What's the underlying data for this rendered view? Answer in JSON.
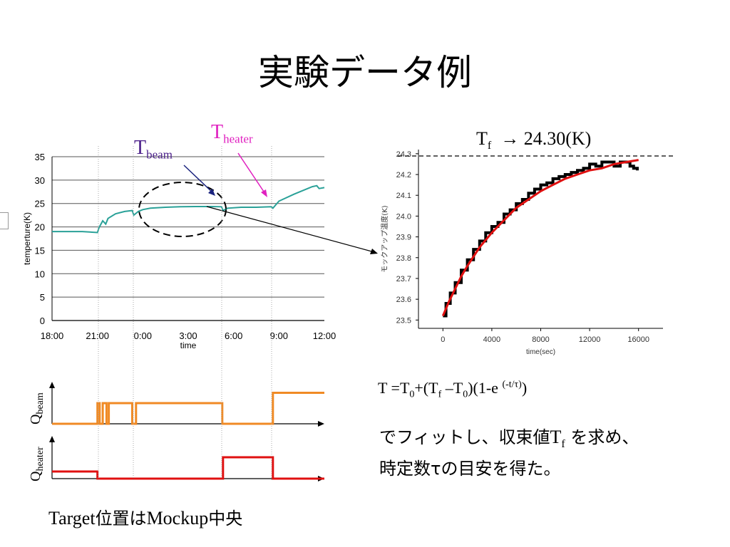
{
  "slide": {
    "title": "実験データ例",
    "caption_en": "Target",
    "caption_jp1": "位置は",
    "caption_en2": "Mockup",
    "caption_jp2": "中央"
  },
  "annotations": {
    "tbeam_T": "T",
    "tbeam_sub": "beam",
    "theater_T": "T",
    "theater_sub": "heater",
    "tf_T": "T",
    "tf_sub": "f",
    "tf_value": "→  24.30(K)",
    "q_beam_Q": "Q",
    "q_beam_sub": "beam",
    "q_heater_Q": "Q",
    "q_heater_sub": "heater"
  },
  "formula": {
    "p1": "T =T",
    "s1": "0",
    "p2": "+(T",
    "s2": "f",
    "p3": " –T",
    "s3": "0",
    "p4": ")(1-e ",
    "sup": "(-t/τ)",
    "p5": ")"
  },
  "notes": {
    "line1_a": "でフィットし、収束値",
    "line1_T": "T",
    "line1_sub": "f",
    "line1_b": " を求め、",
    "line2": "時定数τの目安を得た。"
  },
  "chart_data": [
    {
      "type": "line",
      "ylabel": "temperture(K)",
      "xlabel": "time",
      "x_ticks": [
        "18:00",
        "21:00",
        "0:00",
        "3:00",
        "6:00",
        "9:00",
        "12:00"
      ],
      "y_ticks": [
        "0",
        "5",
        "10",
        "15",
        "20",
        "25",
        "30",
        "35"
      ],
      "ylim": [
        0,
        35
      ],
      "xlim_hours": [
        0,
        18
      ],
      "grid": "horizontal",
      "color": "#2aa198",
      "series": [
        {
          "x_hours": [
            0,
            2.0,
            3.0,
            3.1,
            3.35,
            3.55,
            3.7,
            4.2,
            4.8,
            5.3,
            5.4,
            5.7,
            6.0,
            6.5,
            7.5,
            8.5,
            9.5,
            10.5,
            11.2,
            11.3,
            11.6,
            12.5,
            13.5,
            14.5,
            14.6,
            15.0,
            16.0,
            17.2,
            17.5,
            17.65,
            18.0
          ],
          "y": [
            19.0,
            19.0,
            18.8,
            19.8,
            21.3,
            20.6,
            21.8,
            22.8,
            23.3,
            23.5,
            22.5,
            23.3,
            23.7,
            24.0,
            24.2,
            24.3,
            24.35,
            24.35,
            24.3,
            23.5,
            24.0,
            24.2,
            24.2,
            24.3,
            24.0,
            25.5,
            27.0,
            28.6,
            28.8,
            28.2,
            28.4
          ]
        }
      ]
    },
    {
      "type": "line",
      "xlabel": "time(sec)",
      "ylabel": "モックアップ温度(K)",
      "x_ticks": [
        "0",
        "4000",
        "8000",
        "12000",
        "16000"
      ],
      "y_ticks": [
        "23.5",
        "23.6",
        "23.7",
        "23.8",
        "23.9",
        "24.0",
        "24.1",
        "24.2",
        "24.3"
      ],
      "xlim": [
        -2000,
        18000
      ],
      "ylim": [
        23.46,
        24.32
      ],
      "reference_line": 24.3,
      "series": [
        {
          "name": "",
          "color": "#000000",
          "x": [
            0,
            250,
            600,
            1000,
            1500,
            2000,
            2500,
            3000,
            3500,
            4000,
            4500,
            5000,
            5500,
            6000,
            6500,
            7000,
            7500,
            8000,
            8500,
            9000,
            9500,
            10000,
            10500,
            11000,
            11500,
            12000,
            12500,
            13000,
            13500,
            14000,
            14500,
            15000,
            15300,
            15600,
            15900
          ],
          "y": [
            23.52,
            23.58,
            23.63,
            23.68,
            23.74,
            23.79,
            23.84,
            23.88,
            23.92,
            23.95,
            23.97,
            24.01,
            24.03,
            24.06,
            24.08,
            24.11,
            24.13,
            24.15,
            24.16,
            24.18,
            24.19,
            24.2,
            24.21,
            24.22,
            24.23,
            24.25,
            24.24,
            24.26,
            24.26,
            24.24,
            24.26,
            24.26,
            24.24,
            24.23,
            24.22
          ]
        },
        {
          "name": "",
          "color": "#e01010",
          "x": [
            0,
            500,
            1000,
            1500,
            2000,
            3000,
            4000,
            5000,
            6000,
            7000,
            8000,
            9000,
            10000,
            11000,
            12000,
            13000,
            14000,
            15000,
            16000
          ],
          "y": [
            23.52,
            23.59,
            23.65,
            23.71,
            23.76,
            23.85,
            23.92,
            23.98,
            24.04,
            24.08,
            24.12,
            24.15,
            24.18,
            24.2,
            24.22,
            24.23,
            24.25,
            24.26,
            24.27
          ]
        }
      ]
    },
    {
      "type": "line",
      "ylabel": "Qbeam",
      "xlim_hours": [
        0,
        18
      ],
      "series": [
        {
          "name": "Qbeam",
          "color": "#f08a24",
          "x_hours": [
            0,
            3.0,
            3.0,
            3.15,
            3.15,
            3.35,
            3.35,
            3.6,
            3.6,
            3.75,
            3.75,
            5.3,
            5.3,
            5.55,
            5.55,
            11.25,
            11.25,
            14.6,
            14.6,
            18.0
          ],
          "y": [
            0,
            0,
            1,
            1,
            0,
            0,
            1,
            1,
            0,
            0,
            1,
            1,
            0,
            0,
            1,
            1,
            0,
            0,
            1.5,
            1.5
          ]
        },
        {
          "name": "Qheater",
          "color": "#e01010",
          "x_hours": [
            0,
            3.0,
            3.0,
            11.3,
            11.3,
            14.6,
            14.6,
            18.0
          ],
          "y": [
            1,
            1,
            0,
            0,
            3,
            3,
            0,
            0
          ]
        }
      ]
    }
  ]
}
